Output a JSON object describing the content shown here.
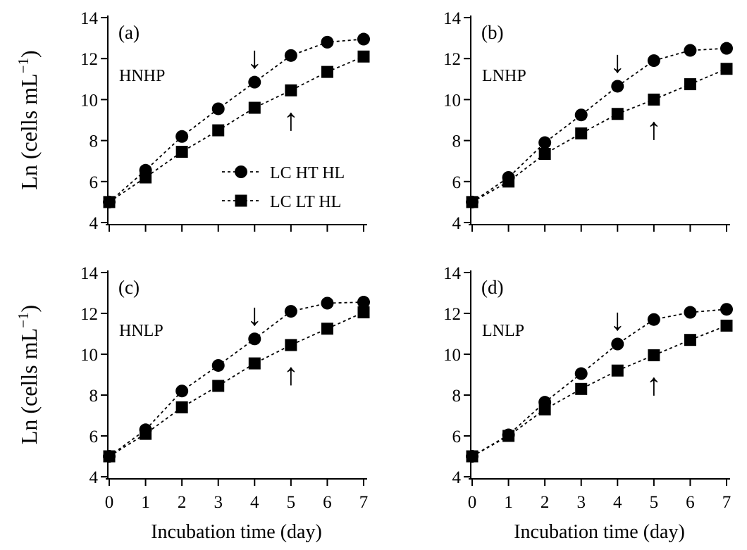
{
  "ylabel_text": "Ln (cells mL",
  "ylabel_sup": "−1",
  "ylabel_close": ")",
  "xlabel": "Incubation time (day)",
  "arrow_down": "↓",
  "arrow_up": "↑",
  "colors": {
    "marker": "#000000",
    "line": "#000000",
    "background": "#ffffff"
  },
  "marker_shapes": [
    "circle",
    "square"
  ],
  "chart_data": [
    {
      "type": "line",
      "panel_label": "(a)",
      "condition": "HNHP",
      "x": [
        0,
        1,
        2,
        3,
        4,
        5,
        6,
        7
      ],
      "xlim": [
        0,
        7
      ],
      "ylim": [
        4,
        14
      ],
      "yticks": [
        4,
        6,
        8,
        10,
        12,
        14
      ],
      "xlabel": "",
      "ylabel": "Ln (cells mL−1)",
      "legend": {
        "placement": "center-right",
        "entries": [
          "LC HT HL",
          "LC LT HL"
        ]
      },
      "series": [
        {
          "name": "LC HT HL",
          "marker": "circle",
          "values": [
            5.0,
            6.55,
            8.2,
            9.55,
            10.85,
            12.15,
            12.8,
            12.95
          ]
        },
        {
          "name": "LC LT HL",
          "marker": "square",
          "values": [
            5.0,
            6.2,
            7.45,
            8.5,
            9.6,
            10.45,
            11.35,
            12.1
          ]
        }
      ],
      "annotations": [
        {
          "symbol": "↓",
          "x": 4,
          "series": "LC HT HL"
        },
        {
          "symbol": "↑",
          "x": 5,
          "series": "LC LT HL"
        }
      ]
    },
    {
      "type": "line",
      "panel_label": "(b)",
      "condition": "LNHP",
      "x": [
        0,
        1,
        2,
        3,
        4,
        5,
        6,
        7
      ],
      "xlim": [
        0,
        7
      ],
      "ylim": [
        4,
        14
      ],
      "yticks": [
        4,
        6,
        8,
        10,
        12,
        14
      ],
      "xlabel": "",
      "ylabel": "",
      "series": [
        {
          "name": "LC HT HL",
          "marker": "circle",
          "values": [
            5.0,
            6.2,
            7.9,
            9.25,
            10.65,
            11.9,
            12.4,
            12.5
          ]
        },
        {
          "name": "LC LT HL",
          "marker": "square",
          "values": [
            5.0,
            6.0,
            7.35,
            8.35,
            9.3,
            10.0,
            10.75,
            11.5
          ]
        }
      ],
      "annotations": [
        {
          "symbol": "↓",
          "x": 4,
          "series": "LC HT HL"
        },
        {
          "symbol": "↑",
          "x": 5,
          "series": "LC LT HL"
        }
      ]
    },
    {
      "type": "line",
      "panel_label": "(c)",
      "condition": "HNLP",
      "x": [
        0,
        1,
        2,
        3,
        4,
        5,
        6,
        7
      ],
      "xlim": [
        0,
        7
      ],
      "ylim": [
        4,
        14
      ],
      "yticks": [
        4,
        6,
        8,
        10,
        12,
        14
      ],
      "xticks": [
        0,
        1,
        2,
        3,
        4,
        5,
        6,
        7
      ],
      "xlabel": "Incubation time (day)",
      "ylabel": "Ln (cells mL−1)",
      "series": [
        {
          "name": "LC HT HL",
          "marker": "circle",
          "values": [
            5.0,
            6.3,
            8.2,
            9.45,
            10.75,
            12.1,
            12.5,
            12.55
          ]
        },
        {
          "name": "LC LT HL",
          "marker": "square",
          "values": [
            5.0,
            6.1,
            7.4,
            8.45,
            9.55,
            10.45,
            11.25,
            12.05
          ]
        }
      ],
      "annotations": [
        {
          "symbol": "↓",
          "x": 4,
          "series": "LC HT HL"
        },
        {
          "symbol": "↑",
          "x": 5,
          "series": "LC LT HL"
        }
      ]
    },
    {
      "type": "line",
      "panel_label": "(d)",
      "condition": "LNLP",
      "x": [
        0,
        1,
        2,
        3,
        4,
        5,
        6,
        7
      ],
      "xlim": [
        0,
        7
      ],
      "ylim": [
        4,
        14
      ],
      "yticks": [
        4,
        6,
        8,
        10,
        12,
        14
      ],
      "xticks": [
        0,
        1,
        2,
        3,
        4,
        5,
        6,
        7
      ],
      "xlabel": "Incubation time (day)",
      "ylabel": "",
      "series": [
        {
          "name": "LC HT HL",
          "marker": "circle",
          "values": [
            5.0,
            6.05,
            7.65,
            9.05,
            10.5,
            11.7,
            12.05,
            12.2
          ]
        },
        {
          "name": "LC LT HL",
          "marker": "square",
          "values": [
            5.0,
            6.0,
            7.3,
            8.3,
            9.2,
            9.95,
            10.7,
            11.4
          ]
        }
      ],
      "annotations": [
        {
          "symbol": "↓",
          "x": 4,
          "series": "LC HT HL"
        },
        {
          "symbol": "↑",
          "x": 5,
          "series": "LC LT HL"
        }
      ]
    }
  ]
}
